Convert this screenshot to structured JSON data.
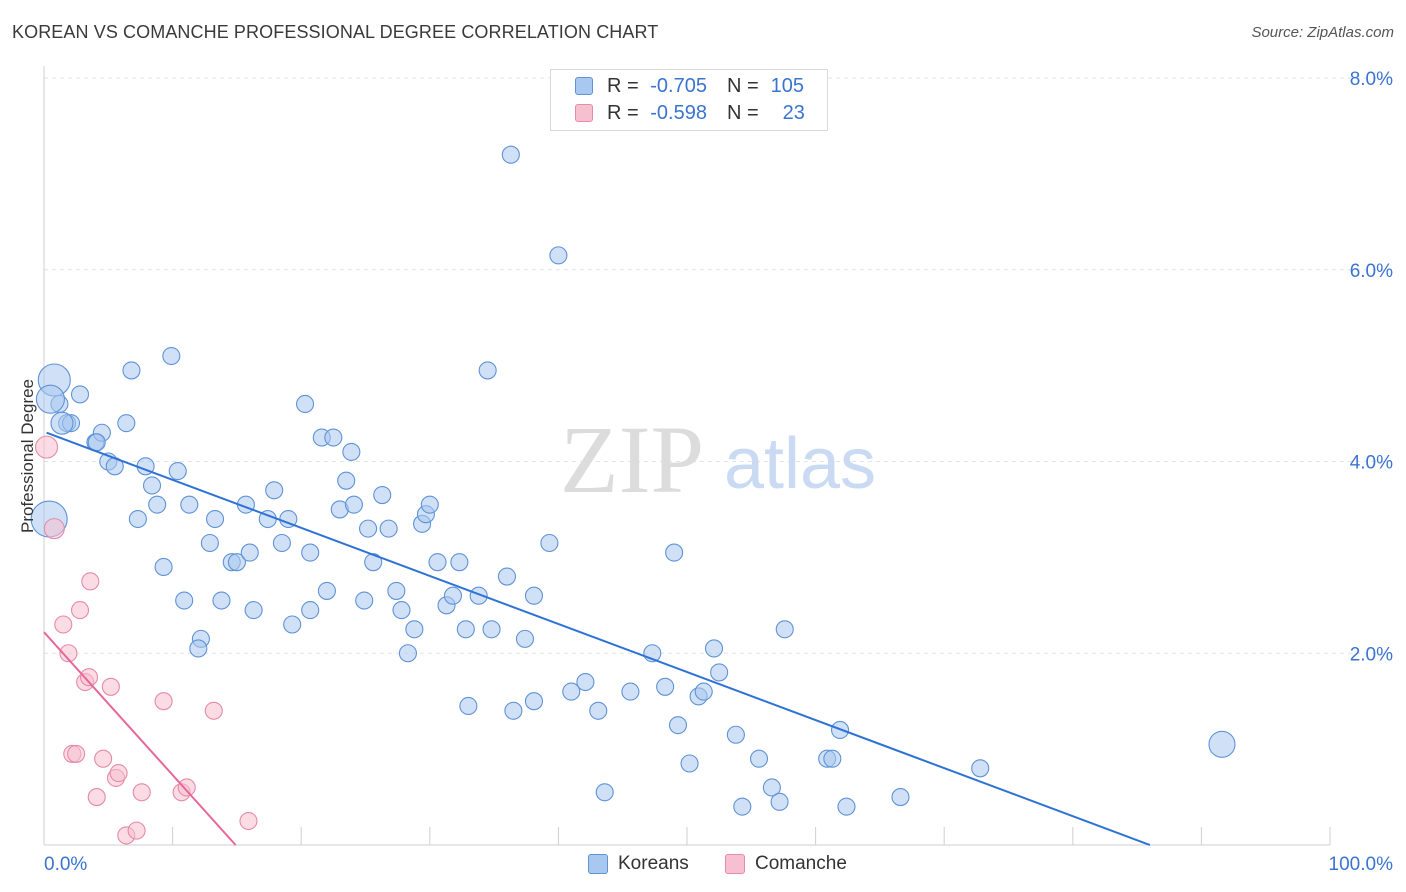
{
  "title": "KOREAN VS COMANCHE PROFESSIONAL DEGREE CORRELATION CHART",
  "source": "Source: ZipAtlas.com",
  "legend": {
    "rows": [
      {
        "r_label": "R =",
        "r_value": "-0.705",
        "n_label": "N =",
        "n_value": "105",
        "color": "#a9c8f0",
        "border": "#5f93d6"
      },
      {
        "r_label": "R =",
        "r_value": "-0.598",
        "n_label": "N =",
        "n_value": "23",
        "color": "#f7c0d0",
        "border": "#e58aa8"
      }
    ]
  },
  "bottom_legend": {
    "koreans": "Koreans",
    "comanche": "Comanche"
  },
  "watermark": {
    "zip": "ZIP",
    "atlas": "atlas"
  },
  "chart_data": {
    "type": "scatter",
    "ylabel": "Professional Degree",
    "xlabel": "",
    "xlim": [
      0,
      100
    ],
    "ylim": [
      0,
      8
    ],
    "x_tick_labels": [
      "0.0%",
      "100.0%"
    ],
    "y_tick_labels": [
      "2.0%",
      "4.0%",
      "6.0%",
      "8.0%"
    ],
    "y_ticks": [
      2,
      4,
      6,
      8
    ],
    "grid": true,
    "series": [
      {
        "name": "Koreans",
        "color": "#a9c8f0",
        "stroke": "#5f93d6",
        "line_color": "#2f72d6",
        "trend": [
          [
            0.2,
            4.3
          ],
          [
            86,
            0
          ]
        ],
        "points": [
          [
            1.2,
            4.6
          ],
          [
            2.8,
            4.7
          ],
          [
            1.8,
            4.4
          ],
          [
            2.1,
            4.4
          ],
          [
            4,
            4.2
          ],
          [
            4.5,
            4.3
          ],
          [
            4.1,
            4.2
          ],
          [
            5,
            4
          ],
          [
            5.5,
            3.95
          ],
          [
            6.4,
            4.4
          ],
          [
            6.8,
            4.95
          ],
          [
            9.9,
            5.1
          ],
          [
            10.4,
            3.9
          ],
          [
            7.9,
            3.95
          ],
          [
            8.4,
            3.75
          ],
          [
            8.8,
            3.55
          ],
          [
            7.3,
            3.4
          ],
          [
            11.3,
            3.55
          ],
          [
            12.9,
            3.15
          ],
          [
            13.3,
            3.4
          ],
          [
            14.6,
            2.95
          ],
          [
            15,
            2.95
          ],
          [
            15.7,
            3.55
          ],
          [
            16,
            3.05
          ],
          [
            17.4,
            3.4
          ],
          [
            17.9,
            3.7
          ],
          [
            18.5,
            3.15
          ],
          [
            19,
            3.4
          ],
          [
            9.3,
            2.9
          ],
          [
            10.9,
            2.55
          ],
          [
            12.2,
            2.15
          ],
          [
            12,
            2.05
          ],
          [
            13.8,
            2.55
          ],
          [
            16.3,
            2.45
          ],
          [
            19.3,
            2.3
          ],
          [
            20.3,
            4.6
          ],
          [
            20.7,
            3.05
          ],
          [
            20.7,
            2.45
          ],
          [
            21.6,
            4.25
          ],
          [
            22,
            2.65
          ],
          [
            22.5,
            4.25
          ],
          [
            23,
            3.5
          ],
          [
            23.5,
            3.8
          ],
          [
            23.9,
            4.1
          ],
          [
            24.1,
            3.55
          ],
          [
            24.9,
            2.55
          ],
          [
            25.2,
            3.3
          ],
          [
            25.6,
            2.95
          ],
          [
            26.3,
            3.65
          ],
          [
            26.8,
            3.3
          ],
          [
            27.4,
            2.65
          ],
          [
            27.8,
            2.45
          ],
          [
            28.3,
            2.0
          ],
          [
            28.8,
            2.25
          ],
          [
            29.4,
            3.35
          ],
          [
            29.7,
            3.45
          ],
          [
            30,
            3.55
          ],
          [
            30.6,
            2.95
          ],
          [
            31.3,
            2.5
          ],
          [
            31.8,
            2.6
          ],
          [
            32.3,
            2.95
          ],
          [
            32.8,
            2.25
          ],
          [
            33,
            1.45
          ],
          [
            33.8,
            2.6
          ],
          [
            34.5,
            4.95
          ],
          [
            34.8,
            2.25
          ],
          [
            36,
            2.8
          ],
          [
            36.5,
            1.4
          ],
          [
            37.4,
            2.15
          ],
          [
            38.1,
            2.6
          ],
          [
            38.1,
            1.5
          ],
          [
            39.3,
            3.15
          ],
          [
            36.3,
            7.2
          ],
          [
            40,
            6.15
          ],
          [
            41,
            1.6
          ],
          [
            42.1,
            1.7
          ],
          [
            43.1,
            1.4
          ],
          [
            43.6,
            0.55
          ],
          [
            45.6,
            1.6
          ],
          [
            47.3,
            2.0
          ],
          [
            48.3,
            1.65
          ],
          [
            49,
            3.05
          ],
          [
            49.3,
            1.25
          ],
          [
            50.2,
            0.85
          ],
          [
            50.9,
            1.55
          ],
          [
            51.3,
            1.6
          ],
          [
            52.1,
            2.05
          ],
          [
            52.5,
            1.8
          ],
          [
            53.8,
            1.15
          ],
          [
            54.3,
            0.4
          ],
          [
            55.6,
            0.9
          ],
          [
            56.6,
            0.6
          ],
          [
            57.2,
            0.45
          ],
          [
            57.6,
            2.25
          ],
          [
            60.9,
            0.9
          ],
          [
            61.3,
            0.9
          ],
          [
            61.9,
            1.2
          ],
          [
            62.4,
            0.4
          ],
          [
            66.6,
            0.5
          ],
          [
            72.8,
            0.8
          ],
          [
            91.6,
            1.05
          ],
          [
            0.8,
            4.85
          ],
          [
            0.5,
            4.65
          ],
          [
            0.4,
            3.4
          ],
          [
            1.4,
            4.4
          ]
        ]
      },
      {
        "name": "Comanche",
        "color": "#f7c0d0",
        "stroke": "#e58aa8",
        "line_color": "#e8679a",
        "trend": [
          [
            0,
            2.22
          ],
          [
            14.9,
            0
          ]
        ],
        "points": [
          [
            0.2,
            4.15
          ],
          [
            0.8,
            3.3
          ],
          [
            1.5,
            2.3
          ],
          [
            1.9,
            2.0
          ],
          [
            2.2,
            0.95
          ],
          [
            2.5,
            0.95
          ],
          [
            2.8,
            2.45
          ],
          [
            3.2,
            1.7
          ],
          [
            3.6,
            2.75
          ],
          [
            3.5,
            1.75
          ],
          [
            4.1,
            0.5
          ],
          [
            4.6,
            0.9
          ],
          [
            5.2,
            1.65
          ],
          [
            5.6,
            0.7
          ],
          [
            5.8,
            0.75
          ],
          [
            6.4,
            0.1
          ],
          [
            7.2,
            0.15
          ],
          [
            7.6,
            0.55
          ],
          [
            9.3,
            1.5
          ],
          [
            10.7,
            0.55
          ],
          [
            11.1,
            0.6
          ],
          [
            13.2,
            1.4
          ],
          [
            15.9,
            0.25
          ]
        ]
      }
    ]
  }
}
